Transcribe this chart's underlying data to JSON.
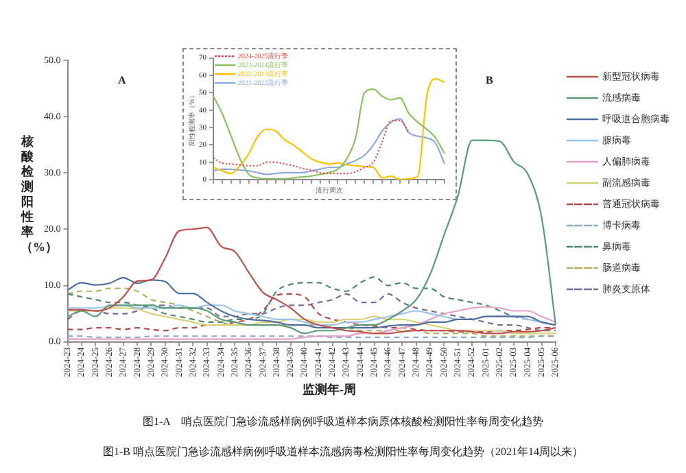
{
  "chart_data": [
    {
      "type": "line",
      "xlabel": "监测年-周",
      "ylabel": "核酸检测阳性率（%）",
      "categories": [
        "2024-23",
        "2024-24",
        "2024-25",
        "2024-26",
        "2024-27",
        "2024-28",
        "2024-29",
        "2024-30",
        "2024-31",
        "2024-32",
        "2024-33",
        "2024-34",
        "2024-35",
        "2024-36",
        "2024-37",
        "2024-38",
        "2024-39",
        "2024-40",
        "2024-41",
        "2024-42",
        "2024-43",
        "2024-44",
        "2024-45",
        "2024-46",
        "2024-47",
        "2024-48",
        "2024-49",
        "2024-50",
        "2024-51",
        "2024-52",
        "2025-01",
        "2025-02",
        "2025-03",
        "2025-04",
        "2025-05",
        "2025-06"
      ],
      "series": [
        {
          "name": "新型冠状病毒",
          "color": "#c0504d",
          "line_style": "solid",
          "values": [
            5.7,
            5.7,
            5.5,
            6,
            8,
            10.8,
            11,
            14.9,
            19.7,
            20,
            20.3,
            17,
            16,
            12.3,
            8.8,
            7.5,
            6,
            4,
            3,
            2.5,
            2,
            1.8,
            1.5,
            1.5,
            1.8,
            2,
            2,
            2,
            2,
            1.8,
            1.5,
            1.5,
            1.8,
            1.8,
            2,
            2.5
          ]
        },
        {
          "name": "流感病毒",
          "color": "#5a9a78",
          "line_style": "solid",
          "values": [
            4.5,
            5.5,
            4.5,
            6.5,
            6.5,
            6.5,
            6.5,
            6,
            6,
            6,
            5.5,
            4,
            3.5,
            3,
            3,
            3,
            2.5,
            1.5,
            2,
            2,
            2.5,
            3,
            3,
            4,
            5.5,
            7.5,
            12,
            19,
            26,
            35.8,
            35.8,
            35.6,
            32,
            29.8,
            22,
            3
          ]
        },
        {
          "name": "呼吸道合胞病毒",
          "color": "#4f6fa0",
          "line_style": "solid",
          "values": [
            9.2,
            10.5,
            10.1,
            10.4,
            11.4,
            10.4,
            11,
            10.7,
            8.6,
            8.6,
            7,
            5.5,
            4.5,
            4,
            3.8,
            3.5,
            3,
            3,
            2.5,
            2.5,
            2.5,
            2.5,
            2.5,
            2.8,
            3,
            3,
            3.5,
            3.5,
            4,
            4,
            4.5,
            4.5,
            4.5,
            4.5,
            3.5,
            3
          ]
        },
        {
          "name": "腺病毒",
          "color": "#9dc3e6",
          "line_style": "solid",
          "values": [
            6,
            6,
            6,
            6.3,
            6.5,
            6,
            6,
            6,
            6.5,
            6,
            6.5,
            6.5,
            5.5,
            5,
            4.5,
            4,
            4,
            3.5,
            3,
            3,
            3.5,
            3.5,
            4,
            4.5,
            5,
            5.5,
            5,
            4.5,
            4,
            4,
            4.5,
            4.5,
            4.5,
            4,
            3.5,
            3
          ]
        },
        {
          "name": "人偏肺病毒",
          "color": "#e6a1c8",
          "line_style": "solid",
          "values": [
            0.5,
            0.5,
            0.5,
            0.5,
            0.5,
            0.5,
            0.5,
            0.5,
            0.5,
            0.5,
            0.5,
            0.5,
            0.5,
            0.5,
            0.5,
            0.5,
            0.5,
            0.8,
            1,
            1,
            1,
            1.5,
            1.5,
            2,
            2.5,
            3,
            4,
            5,
            5.5,
            6,
            6.2,
            6,
            5.5,
            5.5,
            4.5,
            3.5
          ]
        },
        {
          "name": "副流感病毒",
          "color": "#d8d27a",
          "line_style": "solid",
          "values": [
            5.5,
            5.5,
            5.5,
            6,
            6,
            5.8,
            5,
            4.5,
            4,
            3.5,
            3,
            3,
            3,
            3,
            3.5,
            3.5,
            4,
            4,
            3.5,
            3.5,
            4,
            4,
            4.5,
            4,
            4,
            3.5,
            3,
            2.5,
            2,
            2,
            2,
            2,
            1.5,
            1.5,
            1.5,
            1.5
          ]
        },
        {
          "name": "普通冠状病毒",
          "color": "#b04a48",
          "line_style": "dashed",
          "values": [
            2.2,
            2.2,
            2.5,
            2.5,
            2.2,
            2.5,
            2.2,
            2,
            2.5,
            2.5,
            3,
            3,
            3.5,
            4,
            5.5,
            8.3,
            8.5,
            8,
            5,
            4,
            3.5,
            3,
            2.8,
            2.5,
            2.5,
            2.2,
            2,
            2,
            1.8,
            1.8,
            1.8,
            2,
            2,
            2.2,
            2.5,
            2.5
          ]
        },
        {
          "name": "博卡病毒",
          "color": "#8ea9c9",
          "line_style": "dashed",
          "values": [
            1,
            1,
            0.8,
            0.8,
            0.8,
            0.8,
            1,
            1,
            1,
            1,
            1,
            1,
            1,
            1,
            1,
            1,
            1,
            1,
            1,
            0.8,
            0.8,
            0.8,
            0.8,
            0.8,
            0.8,
            0.8,
            0.8,
            0.8,
            0.8,
            0.8,
            0.8,
            0.8,
            0.8,
            0.8,
            1,
            1
          ]
        },
        {
          "name": "鼻病毒",
          "color": "#4e8a6a",
          "line_style": "dashed",
          "values": [
            8.5,
            8,
            7.5,
            7,
            7,
            6.5,
            6,
            5,
            4.5,
            4,
            3.5,
            3.5,
            4,
            4,
            5,
            9,
            10.2,
            10.5,
            10.5,
            9.5,
            9,
            10.5,
            11.5,
            10,
            10.5,
            9.5,
            9.5,
            8,
            7.5,
            7,
            6.5,
            5.5,
            4.5,
            4,
            3.5,
            3
          ]
        },
        {
          "name": "肠道病毒",
          "color": "#b0b060",
          "line_style": "dashed",
          "values": [
            8.5,
            9,
            9,
            9.5,
            9.5,
            9,
            7.5,
            7,
            6.5,
            5.5,
            4.5,
            3.5,
            3,
            3,
            3,
            3,
            3,
            3,
            3,
            2.5,
            2.5,
            2,
            2,
            2,
            2,
            2,
            1.5,
            1.5,
            1.5,
            1.5,
            1,
            1,
            1,
            1,
            1,
            1
          ]
        },
        {
          "name": "肺炎支原体",
          "color": "#7a6a9a",
          "line_style": "dashed",
          "values": [
            4,
            5.5,
            5.5,
            5,
            5,
            5.5,
            6.5,
            6.5,
            6,
            6,
            6,
            4.5,
            4.5,
            5,
            5,
            6,
            6.5,
            6.5,
            7,
            7.5,
            8.5,
            7,
            7,
            8.5,
            7,
            6,
            5.5,
            5,
            4.5,
            4,
            3.5,
            3,
            3,
            2.5,
            2,
            2
          ]
        }
      ],
      "ylim": [
        0,
        50
      ],
      "yticks": [
        {
          "value": 0,
          "label": "0.0"
        },
        {
          "value": 10,
          "label": "10.0"
        },
        {
          "value": 20,
          "label": "20.0"
        },
        {
          "value": 30,
          "label": "30.0"
        },
        {
          "value": 40,
          "label": "40.0"
        },
        {
          "value": 50,
          "label": "50.0"
        }
      ],
      "grid": false,
      "legend": "right",
      "marker": "none",
      "annotations": [
        "A",
        "B",
        "图1-A　哨点医院门急诊流感样病例呼吸道样本病原体核酸检测阳性率每周变化趋势",
        "图1-B 哨点医院门急诊流感样病例呼吸道样本流感病毒检测阳性率每周变化趋势（2021年14周以来）"
      ]
    },
    {
      "type": "line",
      "xlabel": "流行周次",
      "ylabel": "阳性检测率（%）",
      "categories": [
        null,
        null,
        null,
        null,
        null,
        null,
        null,
        null,
        null,
        null,
        null,
        null,
        null,
        null,
        null,
        null,
        null,
        null,
        null,
        null,
        null,
        null,
        null,
        null,
        null,
        null,
        null
      ],
      "series": [
        {
          "name": "2024-2025流行季",
          "color": "#ff3b3b",
          "line_style": "dotted",
          "values": [
            12.5,
            9.5,
            9,
            8.5,
            8,
            8,
            10,
            10,
            9,
            8,
            6.5,
            5.5,
            4,
            3.5,
            3.5,
            3.5,
            4.5,
            7,
            10,
            22,
            34,
            34,
            27,
            null,
            null,
            null,
            null
          ]
        },
        {
          "name": "2023-2024流行季",
          "color": "#8cc063",
          "line_style": "solid",
          "values": [
            48,
            38,
            25,
            12,
            3,
            1,
            0.5,
            0.5,
            0.5,
            1,
            1.5,
            2,
            3,
            4,
            6,
            12,
            24,
            50,
            52,
            48,
            46,
            47,
            38,
            33,
            29,
            24,
            15
          ]
        },
        {
          "name": "2022-2023流行季",
          "color": "#ffc000",
          "line_style": "solid",
          "values": [
            7,
            5,
            3.5,
            8,
            15,
            25,
            29,
            28,
            23,
            20,
            16,
            12,
            10,
            9,
            9.5,
            8.5,
            8,
            7.5,
            7,
            1,
            2,
            0,
            0.5,
            2,
            48,
            58,
            56
          ]
        },
        {
          "name": "2021-2022流行季",
          "color": "#8eaadc",
          "line_style": "solid",
          "values": [
            5,
            6,
            6,
            5.5,
            5,
            4,
            3,
            3.5,
            4,
            4,
            4,
            5,
            6,
            7,
            7,
            9,
            11,
            14,
            20,
            28,
            33,
            35,
            27,
            25,
            24,
            21,
            9
          ]
        }
      ],
      "ylim": [
        0,
        70
      ],
      "yticks": [
        0,
        10,
        20,
        30,
        40,
        50,
        60,
        70
      ],
      "grid": false,
      "legend": "top left",
      "marker": "none"
    }
  ]
}
